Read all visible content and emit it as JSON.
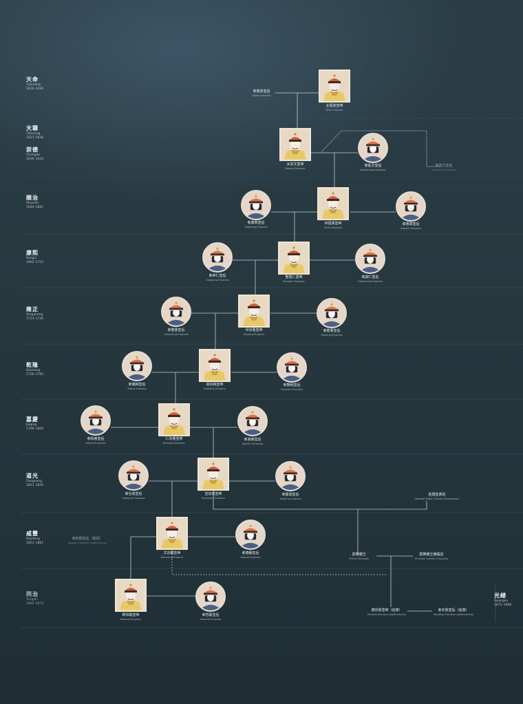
{
  "eras": [
    {
      "name": "天命",
      "roman": "Tianming",
      "years": "1616–1626"
    },
    {
      "name": "天聰",
      "roman": "Tiancong",
      "years": "1627–1636"
    },
    {
      "name": "崇德",
      "roman": "Chongde",
      "years": "1636–1643"
    },
    {
      "name": "順治",
      "roman": "Shunzhi",
      "years": "1644–1661"
    },
    {
      "name": "康熙",
      "roman": "Kangxi",
      "years": "1662–1722"
    },
    {
      "name": "雍正",
      "roman": "Yongzheng",
      "years": "1723–1735"
    },
    {
      "name": "乾隆",
      "roman": "Qianlong",
      "years": "1736–1795"
    },
    {
      "name": "嘉慶",
      "roman": "Jiaqing",
      "years": "1796–1820"
    },
    {
      "name": "道光",
      "roman": "Daoguang",
      "years": "1821–1850"
    },
    {
      "name": "咸豐",
      "roman": "Xianfeng",
      "years": "1851–1861"
    },
    {
      "name": "同治",
      "roman": "Tongzhi",
      "years": "1862–1874"
    },
    {
      "name": "光緒",
      "roman": "Guangxu",
      "years": "1875–1908"
    }
  ],
  "people": {
    "taizu": {
      "cn": "太祖高皇帝",
      "en": "Taizu Emperor"
    },
    "xiaocigao": {
      "cn": "孝慈高皇后",
      "en": "Xiaoci Empress"
    },
    "taizong": {
      "cn": "太宗文皇帝",
      "en": "Taizong Emperor"
    },
    "xiaozhuang": {
      "cn": "孝莊文皇后",
      "en": "Xiaozhuang Empress"
    },
    "xiaoduanwen": {
      "cn": "孝端文皇后",
      "en": "Xiaoduan Empress"
    },
    "shizu": {
      "cn": "世祖章皇帝",
      "en": "Shizu Emperor"
    },
    "xiaokang": {
      "cn": "孝康章皇后",
      "en": "Xiaokang Empress"
    },
    "xiaohui": {
      "cn": "孝惠章皇后",
      "en": "Xiaohui Empress"
    },
    "shengzu": {
      "cn": "聖祖仁皇帝",
      "en": "Shengzu Emperor"
    },
    "xiaogongren": {
      "cn": "孝恭仁皇后",
      "en": "Xiaogong Empress"
    },
    "xiaochengren": {
      "cn": "孝誠仁皇后",
      "en": "Xiaocheng Empress"
    },
    "shizong": {
      "cn": "世宗憲皇帝",
      "en": "Shizong Emperor"
    },
    "xiaoshengxian": {
      "cn": "孝聖憲皇后",
      "en": "Xiaosheng Empress"
    },
    "xiaojingxian": {
      "cn": "孝敬憲皇后",
      "en": "Xiaojing Empress"
    },
    "gaozong": {
      "cn": "高宗純皇帝",
      "en": "Gaozong Emperor"
    },
    "xiaoyichun": {
      "cn": "孝儀純皇后",
      "en": "Xiaoyi Empress"
    },
    "xiaoxianchun": {
      "cn": "孝賢純皇后",
      "en": "Xiaoxian Empress"
    },
    "renzong": {
      "cn": "仁宗睿皇帝",
      "en": "Renzong Emperor"
    },
    "xiaoherui": {
      "cn": "孝和睿皇后",
      "en": "Xiaohe Empress"
    },
    "xiaoshurui": {
      "cn": "孝淑睿皇后",
      "en": "Xiaoshu Empress"
    },
    "xuanzong": {
      "cn": "宣宗成皇帝",
      "en": "Xuanzong Emperor"
    },
    "xiaoquan": {
      "cn": "孝全成皇后",
      "en": "Xiaoquan Empress"
    },
    "xiaojingcheng": {
      "cn": "孝靜成皇后",
      "en": "Xiaojing Empress"
    },
    "zhuangshun": {
      "cn": "莊順皇貴妃",
      "en": "Imperial Noble Consort Zhuangshun"
    },
    "wenzong": {
      "cn": "文宗顯皇帝",
      "en": "Wenzong Emperor"
    },
    "xiaoqinxian": {
      "cn": "孝欽顯皇后（慈禧）",
      "en": "Xiaoqin Empress (posthumous)"
    },
    "xiaodexian": {
      "cn": "孝德顯皇后",
      "en": "Xiaode Empress"
    },
    "chunxian": {
      "cn": "醇賢親王",
      "en": "Prince Chunxian"
    },
    "chunxianfujin": {
      "cn": "醇賢親王嫡福晉",
      "en": "Princess Consort Chunxian"
    },
    "muzong": {
      "cn": "穆宗毅皇帝",
      "en": "Muzong Emperor"
    },
    "xiaozheyi": {
      "cn": "孝哲毅皇后",
      "en": "Xiaozhe Empress"
    },
    "dezong": {
      "cn": "德宗景皇帝（追尊）",
      "en": "Dezong Emperor (posthumous)"
    },
    "xiaodingjing": {
      "cn": "孝定景皇后（追尊）",
      "en": "Xiaoding Empress (posthumous)"
    }
  },
  "colors": {
    "background": "#27383f",
    "line": "#c9d3d8",
    "frame": "#efe6d6",
    "robe_yellow": "#e8c96a",
    "hat_red": "#d9583a"
  },
  "icons": {
    "emperor": "emperor-portrait-icon",
    "empress": "empress-portrait-icon"
  }
}
